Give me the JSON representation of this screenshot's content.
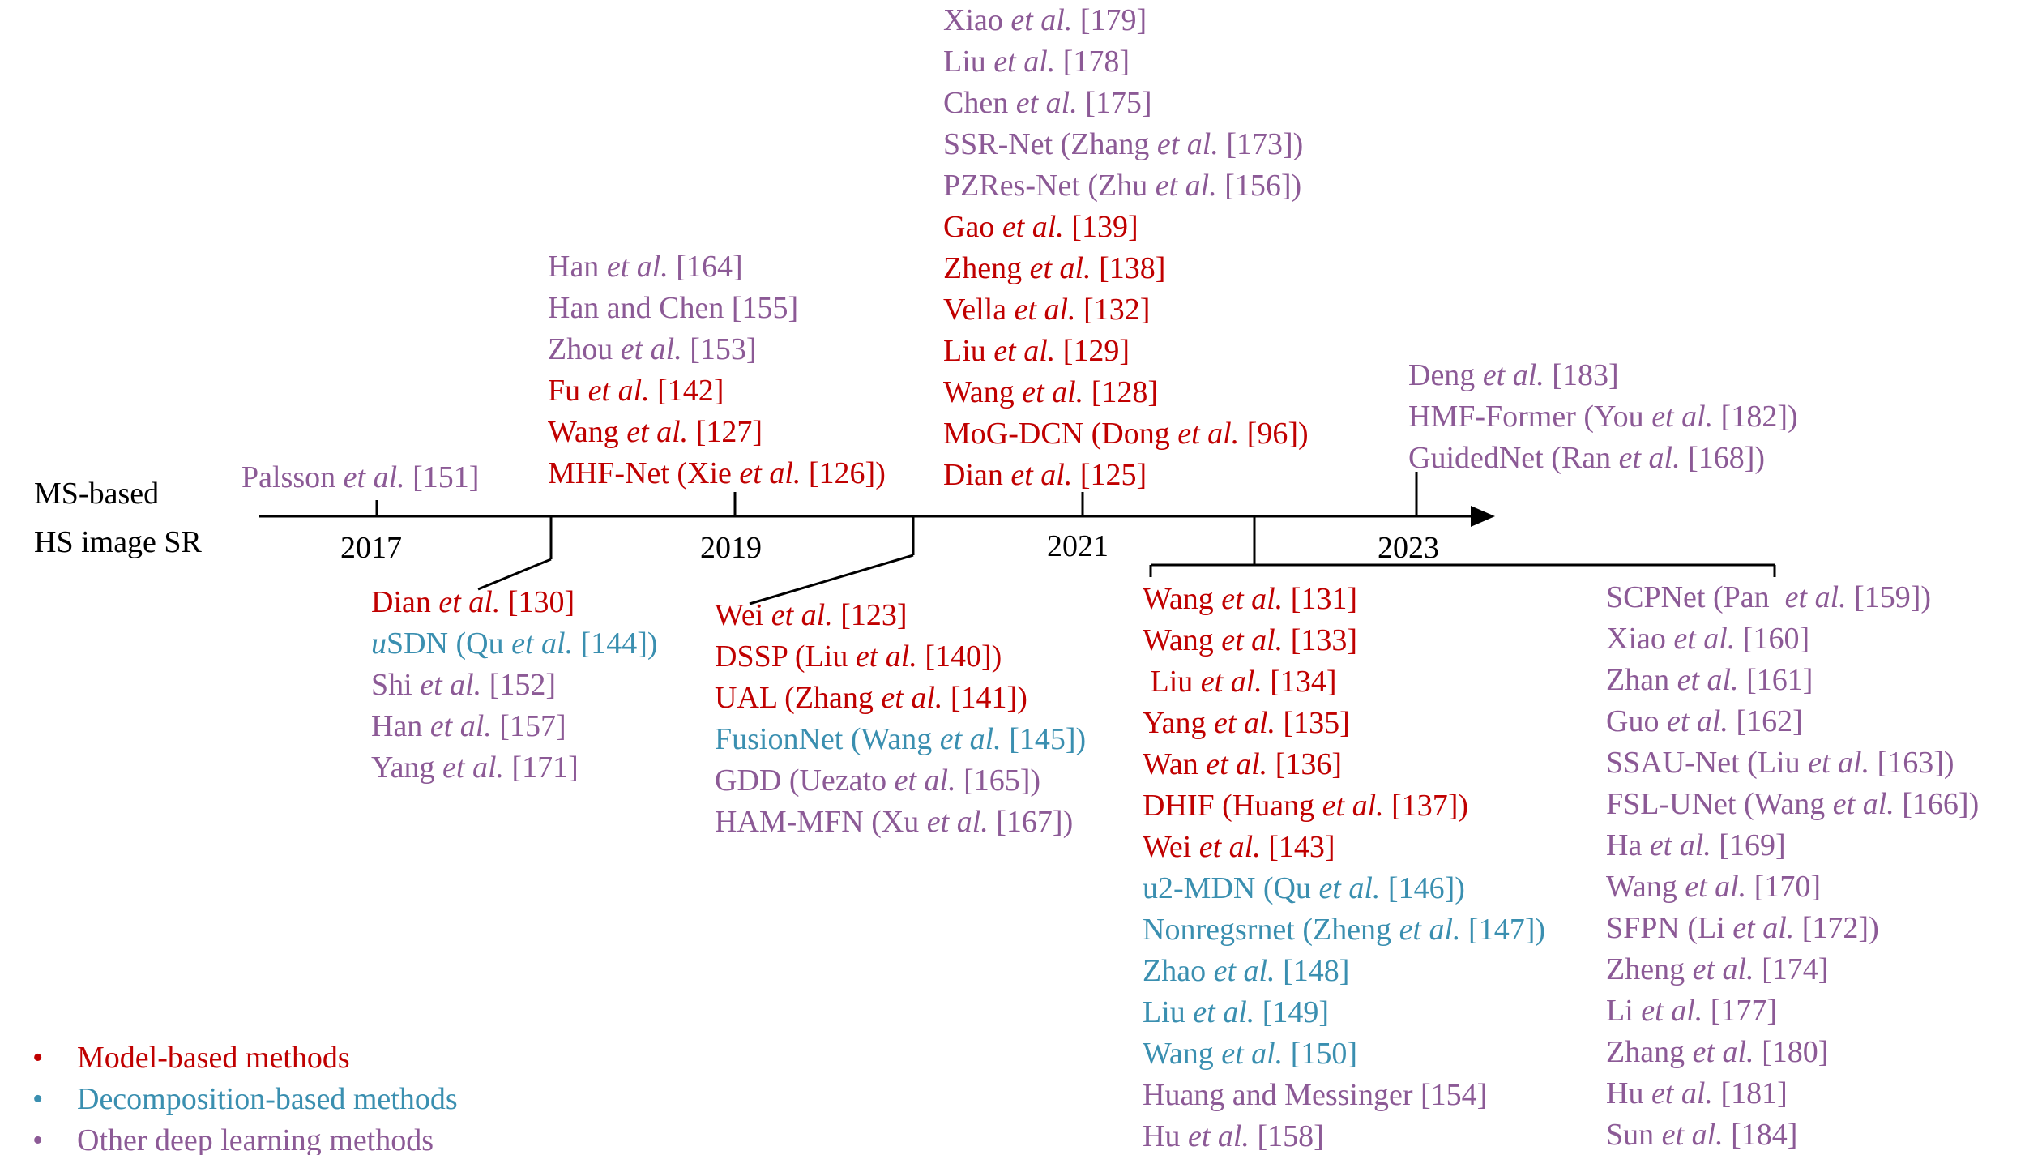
{
  "main_label": {
    "line1": "MS-based",
    "line2": "HS image SR"
  },
  "years": [
    "2017",
    "2019",
    "2021",
    "2023"
  ],
  "colors": {
    "model": "#c00000",
    "decomposition": "#3a8fb0",
    "other": "#8c5a96"
  },
  "above_2017": [
    {
      "pre": "Palsson ",
      "em": "et al.",
      "post": " [151]",
      "cat": "other"
    }
  ],
  "above_2019": [
    {
      "pre": "Han ",
      "em": "et al.",
      "post": " [164]",
      "cat": "other"
    },
    {
      "pre": "Han and Chen [155]",
      "em": "",
      "post": "",
      "cat": "other"
    },
    {
      "pre": "Zhou ",
      "em": "et al.",
      "post": " [153]",
      "cat": "other"
    },
    {
      "pre": "Fu ",
      "em": "et al.",
      "post": " [142]",
      "cat": "model"
    },
    {
      "pre": "Wang ",
      "em": "et al.",
      "post": " [127]",
      "cat": "model"
    },
    {
      "pre": "MHF-Net (Xie ",
      "em": "et al.",
      "post": " [126])",
      "cat": "model"
    }
  ],
  "above_2021": [
    {
      "pre": "Xiao ",
      "em": "et al.",
      "post": " [179]",
      "cat": "other"
    },
    {
      "pre": "Liu ",
      "em": "et al.",
      "post": " [178]",
      "cat": "other"
    },
    {
      "pre": "Chen ",
      "em": "et al.",
      "post": " [175]",
      "cat": "other"
    },
    {
      "pre": "SSR-Net (Zhang ",
      "em": "et al.",
      "post": " [173])",
      "cat": "other"
    },
    {
      "pre": "PZRes-Net (Zhu ",
      "em": "et al.",
      "post": " [156])",
      "cat": "other"
    },
    {
      "pre": "Gao ",
      "em": "et al.",
      "post": " [139]",
      "cat": "model"
    },
    {
      "pre": "Zheng ",
      "em": "et al.",
      "post": " [138]",
      "cat": "model"
    },
    {
      "pre": "Vella ",
      "em": "et al.",
      "post": " [132]",
      "cat": "model"
    },
    {
      "pre": "Liu ",
      "em": "et al.",
      "post": " [129]",
      "cat": "model"
    },
    {
      "pre": "Wang ",
      "em": "et al.",
      "post": " [128]",
      "cat": "model"
    },
    {
      "pre": "MoG-DCN (Dong ",
      "em": "et al.",
      "post": " [96])",
      "cat": "model"
    },
    {
      "pre": "Dian ",
      "em": "et al.",
      "post": " [125]",
      "cat": "model"
    }
  ],
  "above_2023": [
    {
      "pre": "Deng ",
      "em": "et al.",
      "post": " [183]",
      "cat": "other"
    },
    {
      "pre": "HMF-Former (You ",
      "em": "et al.",
      "post": " [182])",
      "cat": "other"
    },
    {
      "pre": "GuidedNet (Ran ",
      "em": "et al.",
      "post": " [168])",
      "cat": "other"
    }
  ],
  "below_2018": [
    {
      "pre": "Dian ",
      "em": "et al.",
      "post": " [130]",
      "cat": "model"
    },
    {
      "pre": "",
      "em": "u",
      "post": "SDN (Qu ",
      "em2": "et al.",
      "post2": " [144])",
      "cat": "decomposition"
    },
    {
      "pre": "Shi ",
      "em": "et al.",
      "post": " [152]",
      "cat": "other"
    },
    {
      "pre": "Han ",
      "em": "et al.",
      "post": " [157]",
      "cat": "other"
    },
    {
      "pre": "Yang ",
      "em": "et al.",
      "post": " [171]",
      "cat": "other"
    }
  ],
  "below_2020": [
    {
      "pre": "Wei ",
      "em": "et al.",
      "post": " [123]",
      "cat": "model"
    },
    {
      "pre": "DSSP (Liu ",
      "em": "et al.",
      "post": " [140])",
      "cat": "model"
    },
    {
      "pre": "UAL (Zhang ",
      "em": "et al.",
      "post": " [141])",
      "cat": "model"
    },
    {
      "pre": "FusionNet (Wang ",
      "em": "et al.",
      "post": " [145])",
      "cat": "decomposition"
    },
    {
      "pre": "GDD (Uezato ",
      "em": "et al.",
      "post": " [165])",
      "cat": "other"
    },
    {
      "pre": "HAM-MFN (Xu ",
      "em": "et al.",
      "post": " [167])",
      "cat": "other"
    }
  ],
  "below_2022_left": [
    {
      "pre": "Wang ",
      "em": "et al.",
      "post": " [131]",
      "cat": "model"
    },
    {
      "pre": "Wang ",
      "em": "et al.",
      "post": " [133]",
      "cat": "model"
    },
    {
      "pre": " Liu ",
      "em": "et al.",
      "post": " [134]",
      "cat": "model"
    },
    {
      "pre": "Yang ",
      "em": "et al.",
      "post": " [135]",
      "cat": "model"
    },
    {
      "pre": "Wan ",
      "em": "et al.",
      "post": " [136]",
      "cat": "model"
    },
    {
      "pre": "DHIF (Huang ",
      "em": "et al.",
      "post": " [137])",
      "cat": "model"
    },
    {
      "pre": "Wei ",
      "em": "et al.",
      "post": " [143]",
      "cat": "model"
    },
    {
      "pre": "u2-MDN (Qu ",
      "em": "et al.",
      "post": " [146])",
      "cat": "decomposition"
    },
    {
      "pre": "Nonregsrnet (Zheng ",
      "em": "et al.",
      "post": " [147])",
      "cat": "decomposition"
    },
    {
      "pre": "Zhao ",
      "em": "et al.",
      "post": " [148]",
      "cat": "decomposition"
    },
    {
      "pre": "Liu ",
      "em": "et al.",
      "post": " [149]",
      "cat": "decomposition"
    },
    {
      "pre": "Wang ",
      "em": "et al.",
      "post": " [150]",
      "cat": "decomposition"
    },
    {
      "pre": "Huang and Messinger [154]",
      "em": "",
      "post": "",
      "cat": "other"
    },
    {
      "pre": "Hu ",
      "em": "et al.",
      "post": " [158]",
      "cat": "other"
    }
  ],
  "below_2022_right": [
    {
      "pre": "SCPNet (Pan  ",
      "em": "et al.",
      "post": " [159])",
      "cat": "other"
    },
    {
      "pre": "Xiao ",
      "em": "et al.",
      "post": " [160]",
      "cat": "other"
    },
    {
      "pre": "Zhan ",
      "em": "et al.",
      "post": " [161]",
      "cat": "other"
    },
    {
      "pre": "Guo ",
      "em": "et al.",
      "post": " [162]",
      "cat": "other"
    },
    {
      "pre": "SSAU-Net (Liu ",
      "em": "et al.",
      "post": " [163])",
      "cat": "other"
    },
    {
      "pre": "FSL-UNet (Wang ",
      "em": "et al.",
      "post": " [166])",
      "cat": "other"
    },
    {
      "pre": "Ha ",
      "em": "et al.",
      "post": " [169]",
      "cat": "other"
    },
    {
      "pre": "Wang ",
      "em": "et al.",
      "post": " [170]",
      "cat": "other"
    },
    {
      "pre": "SFPN (Li ",
      "em": "et al.",
      "post": " [172])",
      "cat": "other"
    },
    {
      "pre": "Zheng ",
      "em": "et al.",
      "post": " [174]",
      "cat": "other"
    },
    {
      "pre": "Li ",
      "em": "et al.",
      "post": " [177]",
      "cat": "other"
    },
    {
      "pre": "Zhang ",
      "em": "et al.",
      "post": " [180]",
      "cat": "other"
    },
    {
      "pre": "Hu ",
      "em": "et al.",
      "post": " [181]",
      "cat": "other"
    },
    {
      "pre": "Sun ",
      "em": "et al.",
      "post": " [184]",
      "cat": "other"
    }
  ],
  "legend": [
    {
      "bullet": "•",
      "label": "Model-based methods",
      "cat": "model"
    },
    {
      "bullet": "•",
      "label": "Decomposition-based methods",
      "cat": "decomposition"
    },
    {
      "bullet": "•",
      "label": "Other deep learning methods",
      "cat": "other"
    }
  ]
}
